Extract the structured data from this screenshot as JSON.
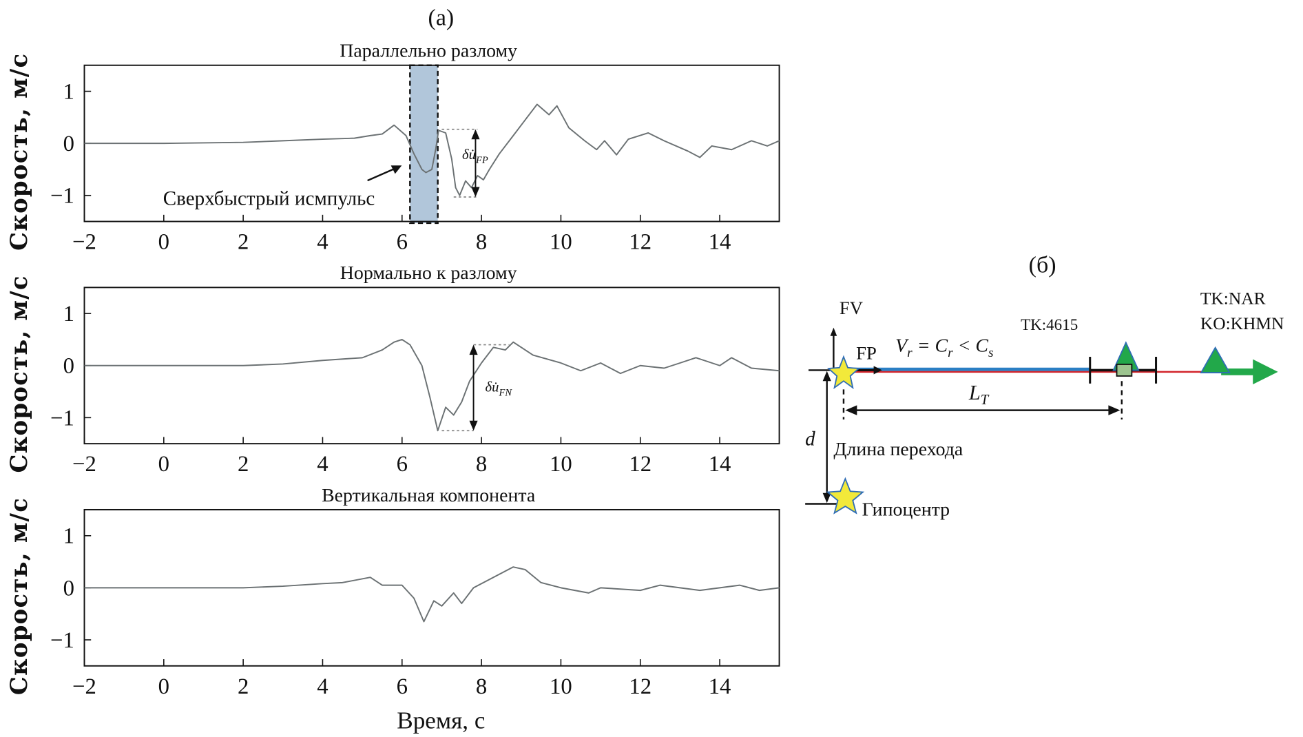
{
  "figure": {
    "label_a": "(a)",
    "label_b": "(б)"
  },
  "chart_data": [
    {
      "type": "line",
      "title": "Параллельно разлому",
      "xlabel": "",
      "ylabel": "Скорость, м/с",
      "xlim": [
        -2,
        15.5
      ],
      "ylim": [
        -1.5,
        1.5
      ],
      "xticks": [
        -2,
        0,
        2,
        4,
        6,
        8,
        10,
        12,
        14
      ],
      "xtick_labels": [
        "−2",
        "0",
        "2",
        "4",
        "6",
        "8",
        "10",
        "12",
        "14"
      ],
      "yticks": [
        1,
        0,
        -1
      ],
      "ytick_labels": [
        "1",
        "0",
        "−1"
      ],
      "color": "#6b7173",
      "x": [
        -2,
        0,
        2,
        3,
        4,
        4.8,
        5.2,
        5.5,
        5.8,
        6.1,
        6.3,
        6.5,
        6.6,
        6.75,
        6.85,
        6.92,
        7.1,
        7.25,
        7.35,
        7.45,
        7.6,
        7.75,
        7.9,
        8.05,
        8.2,
        8.45,
        8.8,
        9.2,
        9.4,
        9.7,
        9.9,
        10.2,
        10.6,
        10.9,
        11.1,
        11.4,
        11.7,
        12.2,
        12.6,
        13.2,
        13.5,
        13.8,
        14.3,
        14.8,
        15.2,
        15.5
      ],
      "y": [
        0,
        0,
        0.02,
        0.05,
        0.08,
        0.1,
        0.15,
        0.18,
        0.35,
        0.15,
        -0.2,
        -0.5,
        -0.56,
        -0.5,
        -0.1,
        0.25,
        0.2,
        -0.3,
        -0.85,
        -1.0,
        -0.72,
        -0.85,
        -0.62,
        -0.7,
        -0.5,
        -0.2,
        0.15,
        0.55,
        0.75,
        0.55,
        0.72,
        0.3,
        0.05,
        -0.12,
        0.05,
        -0.22,
        0.08,
        0.2,
        0.05,
        -0.15,
        -0.27,
        -0.05,
        -0.12,
        0.05,
        -0.05,
        0.05
      ],
      "annotations": {
        "highlight_x": [
          6.2,
          6.9
        ],
        "highlight_label": "Сверхбыстрый исмпульс",
        "delta_top": 0.27,
        "delta_bottom": -1.03,
        "delta_label": "δu̇",
        "delta_sub": "FP"
      }
    },
    {
      "type": "line",
      "title": "Нормально к разлому",
      "xlabel": "",
      "ylabel": "Скорость, м/с",
      "xlim": [
        -2,
        15.5
      ],
      "ylim": [
        -1.5,
        1.5
      ],
      "xticks": [
        -2,
        0,
        2,
        4,
        6,
        8,
        10,
        12,
        14
      ],
      "xtick_labels": [
        "−2",
        "0",
        "2",
        "4",
        "6",
        "8",
        "10",
        "12",
        "14"
      ],
      "yticks": [
        1,
        0,
        -1
      ],
      "ytick_labels": [
        "1",
        "0",
        "−1"
      ],
      "color": "#6b7173",
      "x": [
        -2,
        0,
        2,
        3,
        4,
        5,
        5.5,
        5.8,
        6,
        6.2,
        6.5,
        6.7,
        6.9,
        7.1,
        7.3,
        7.5,
        7.7,
        8,
        8.3,
        8.6,
        8.8,
        9.3,
        10,
        10.5,
        11,
        11.5,
        12,
        12.6,
        13,
        13.4,
        14,
        14.3,
        14.8,
        15.5
      ],
      "y": [
        0,
        0,
        0,
        0.03,
        0.1,
        0.15,
        0.3,
        0.45,
        0.5,
        0.4,
        0,
        -0.6,
        -1.25,
        -0.8,
        -0.95,
        -0.7,
        -0.3,
        0.05,
        0.35,
        0.3,
        0.45,
        0.2,
        0.05,
        -0.1,
        0.05,
        -0.15,
        0,
        -0.05,
        0.05,
        0.15,
        0,
        0.15,
        -0.05,
        -0.1
      ],
      "annotations": {
        "delta_top": 0.4,
        "delta_bottom": -1.25,
        "delta_label": "δu̇",
        "delta_sub": "FN"
      }
    },
    {
      "type": "line",
      "title": "Вертикальная компонента",
      "xlabel": "Время, с",
      "ylabel": "Скорость, м/с",
      "xlim": [
        -2,
        15.5
      ],
      "ylim": [
        -1.5,
        1.5
      ],
      "xticks": [
        -2,
        0,
        2,
        4,
        6,
        8,
        10,
        12,
        14
      ],
      "xtick_labels": [
        "−2",
        "0",
        "2",
        "4",
        "6",
        "8",
        "10",
        "12",
        "14"
      ],
      "yticks": [
        1,
        0,
        -1
      ],
      "ytick_labels": [
        "1",
        "0",
        "−1"
      ],
      "color": "#6b7173",
      "x": [
        -2,
        0,
        2,
        3,
        4,
        4.5,
        5.2,
        5.5,
        6,
        6.3,
        6.55,
        6.8,
        7,
        7.3,
        7.5,
        7.8,
        8.3,
        8.8,
        9.1,
        9.5,
        10,
        10.7,
        11,
        12,
        12.5,
        13.5,
        14,
        14.5,
        15,
        15.5
      ],
      "y": [
        0,
        0,
        0,
        0.03,
        0.08,
        0.1,
        0.2,
        0.05,
        0.05,
        -0.2,
        -0.65,
        -0.25,
        -0.35,
        -0.1,
        -0.3,
        0,
        0.2,
        0.4,
        0.35,
        0.1,
        0,
        -0.1,
        0,
        -0.05,
        0.05,
        -0.05,
        0,
        0.05,
        -0.05,
        0
      ]
    }
  ],
  "diagram": {
    "fv_label": "FV",
    "fp_label": "FP",
    "velocity_v": "V",
    "velocity_v_sub": "r",
    "velocity_eq": " = ",
    "velocity_c1": "C",
    "velocity_c1_sub": "r",
    "velocity_lt": " < ",
    "velocity_c2": "C",
    "velocity_c2_sub": "s",
    "station1": "TK:4615",
    "station2_line1": "TK:NAR",
    "station2_line2": "KO:KHMN",
    "lt_label": "L",
    "lt_sub": "T",
    "d_label": "d",
    "transition_label": "Длина перехода",
    "hypocenter_label": "Гипоцентр",
    "colors": {
      "star": "#f2e93a",
      "star_edge": "#2f6db5",
      "blue": "#2a7fc4",
      "red": "#d2232a",
      "green": "#22a84a"
    }
  }
}
